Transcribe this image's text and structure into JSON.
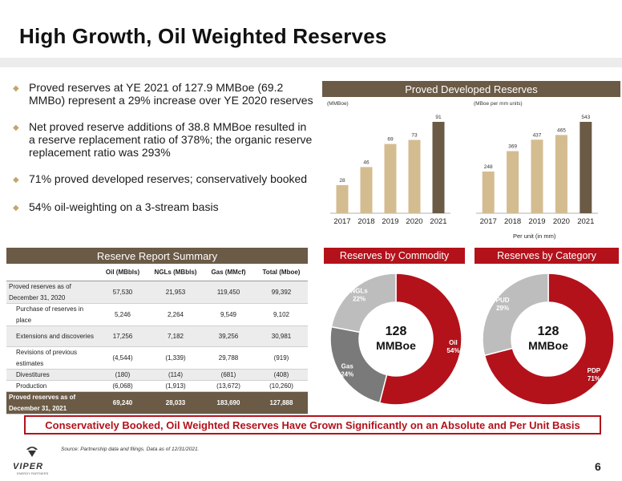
{
  "title": "High Growth, Oil Weighted Reserves",
  "bullets": [
    "Proved reserves at YE 2021 of 127.9 MMBoe (69.2 MMBo) represent a 29% increase over YE 2020 reserves",
    "Net proved reserve additions of 38.8 MMBoe resulted in a reserve replacement ratio of 378%; the organic reserve replacement ratio was 293%",
    "71% proved developed reserves; conservatively booked",
    "54% oil-weighting on a 3-stream basis"
  ],
  "pdr": {
    "title": "Proved Developed Reserves",
    "left_unit": "(MMBoe)",
    "right_unit": "(MBoe per mm units)",
    "per_unit_caption": "Per unit (in mm)"
  },
  "colors": {
    "tan": "#d4bc91",
    "dark_brown": "#6b5a45",
    "red": "#b3121b",
    "light_gray": "#bdbdbd",
    "dark_gray": "#7a7a7a"
  },
  "chart_data": [
    {
      "type": "bar",
      "categories": [
        "2017",
        "2018",
        "2019",
        "2020",
        "2021"
      ],
      "values": [
        28,
        46,
        69,
        73,
        91
      ],
      "ylabel": "(MMBoe)"
    },
    {
      "type": "bar",
      "categories": [
        "2017",
        "2018",
        "2019",
        "2020",
        "2021"
      ],
      "values": [
        248,
        369,
        437,
        465,
        543
      ],
      "ylabel": "(MBoe per mm units)",
      "xlabel": "Per unit (in mm)"
    },
    {
      "type": "pie",
      "title": "Reserves by Commodity",
      "center_text": [
        "128",
        "MMBoe"
      ],
      "slices": [
        {
          "name": "Oil",
          "value": 54,
          "color": "#b3121b"
        },
        {
          "name": "Gas",
          "value": 24,
          "color": "#7a7a7a"
        },
        {
          "name": "NGLs",
          "value": 22,
          "color": "#bdbdbd"
        }
      ]
    },
    {
      "type": "pie",
      "title": "Reserves by Category",
      "center_text": [
        "128",
        "MMBoe"
      ],
      "slices": [
        {
          "name": "PDP",
          "value": 71,
          "color": "#b3121b"
        },
        {
          "name": "PUD",
          "value": 29,
          "color": "#bdbdbd"
        }
      ]
    }
  ],
  "table": {
    "title": "Reserve Report Summary",
    "headers": [
      "",
      "Oil (MBbls)",
      "NGLs (MBbls)",
      "Gas (MMcf)",
      "Total (Mboe)"
    ],
    "rows": [
      {
        "label": "Proved reserves as of December 31, 2020",
        "values": [
          "57,530",
          "21,953",
          "119,450",
          "99,392"
        ],
        "style": "shade"
      },
      {
        "label": "Purchase of reserves in place",
        "values": [
          "5,246",
          "2,264",
          "9,549",
          "9,102"
        ],
        "style": "ind"
      },
      {
        "label": "Extensions and discoveries",
        "values": [
          "17,256",
          "7,182",
          "39,256",
          "30,981"
        ],
        "style": "ind shade"
      },
      {
        "label": "Revisions of previous estimates",
        "values": [
          "(4,544)",
          "(1,339)",
          "29,788",
          "(919)"
        ],
        "style": "ind"
      },
      {
        "label": "Divestitures",
        "values": [
          "(180)",
          "(114)",
          "(681)",
          "(408)"
        ],
        "style": "ind shade"
      },
      {
        "label": "Production",
        "values": [
          "(6,068)",
          "(1,913)",
          "(13,672)",
          "(10,260)"
        ],
        "style": "ind"
      },
      {
        "label": "Proved reserves as of December 31, 2021",
        "values": [
          "69,240",
          "28,033",
          "183,690",
          "127,888"
        ],
        "style": "total"
      }
    ]
  },
  "banner": "Conservatively Booked, Oil Weighted Reserves Have Grown Significantly on an Absolute and Per Unit Basis",
  "source": "Source: Partnership data and filings. Data as of 12/31/2021.",
  "logo": {
    "name": "VIPER",
    "sub": "ENERGY PARTNERS"
  },
  "page_number": "6"
}
